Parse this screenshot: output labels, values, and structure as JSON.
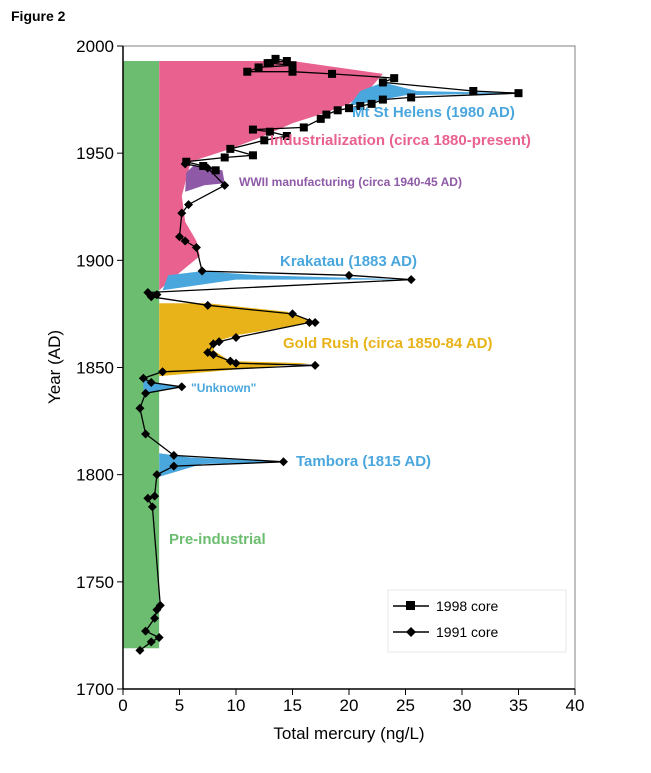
{
  "figure_label": "Figure 2",
  "colors": {
    "pre_industrial": "#6cbd6f",
    "industrialization": "#e9628f",
    "gold_rush": "#e8b318",
    "wwii": "#8e59a6",
    "volcanic": "#4aa7dd",
    "line": "#000000"
  },
  "chart_data": {
    "type": "line",
    "xlabel": "Total mercury (ng/L)",
    "ylabel": "Year (AD)",
    "xlim": [
      0,
      40
    ],
    "ylim": [
      1700,
      2000
    ],
    "xticks": [
      0,
      5,
      10,
      15,
      20,
      25,
      30,
      35,
      40
    ],
    "yticks": [
      1700,
      1750,
      1800,
      1850,
      1900,
      1950,
      2000
    ],
    "legend_position": "bottom-right",
    "series": [
      {
        "name": "1998 core",
        "marker": "square",
        "points": [
          [
            8.2,
            1942
          ],
          [
            7.1,
            1944
          ],
          [
            5.6,
            1946
          ],
          [
            9.0,
            1948
          ],
          [
            11.5,
            1949
          ],
          [
            9.5,
            1952
          ],
          [
            12.5,
            1956
          ],
          [
            14.5,
            1958
          ],
          [
            13.0,
            1960
          ],
          [
            11.5,
            1961
          ],
          [
            16.0,
            1962
          ],
          [
            17.5,
            1966
          ],
          [
            18.0,
            1968
          ],
          [
            19.0,
            1970
          ],
          [
            20.0,
            1971
          ],
          [
            21.0,
            1972
          ],
          [
            22.0,
            1973
          ],
          [
            23.0,
            1975
          ],
          [
            25.5,
            1976
          ],
          [
            31.0,
            1979
          ],
          [
            35.0,
            1978
          ],
          [
            23.0,
            1983
          ],
          [
            24.0,
            1985
          ],
          [
            18.5,
            1987
          ],
          [
            15.0,
            1988
          ],
          [
            11.0,
            1988
          ],
          [
            12.0,
            1990
          ],
          [
            13.0,
            1992
          ],
          [
            15.0,
            1991
          ],
          [
            14.5,
            1993
          ],
          [
            13.5,
            1994
          ],
          [
            12.8,
            1992
          ]
        ]
      },
      {
        "name": "1991 core",
        "marker": "diamond",
        "points": [
          [
            1.5,
            1718
          ],
          [
            2.5,
            1722
          ],
          [
            3.2,
            1724
          ],
          [
            2.0,
            1727
          ],
          [
            2.8,
            1733
          ],
          [
            3.0,
            1737
          ],
          [
            3.3,
            1739
          ],
          [
            2.6,
            1785
          ],
          [
            2.2,
            1789
          ],
          [
            2.8,
            1790
          ],
          [
            3.0,
            1800
          ],
          [
            4.5,
            1804
          ],
          [
            14.2,
            1806
          ],
          [
            4.5,
            1809
          ],
          [
            2.0,
            1819
          ],
          [
            1.5,
            1831
          ],
          [
            2.0,
            1838
          ],
          [
            5.2,
            1841
          ],
          [
            2.5,
            1843
          ],
          [
            1.8,
            1845
          ],
          [
            3.5,
            1848
          ],
          [
            17.0,
            1851
          ],
          [
            10.0,
            1852
          ],
          [
            9.5,
            1853
          ],
          [
            8.0,
            1856
          ],
          [
            7.5,
            1857
          ],
          [
            8.0,
            1861
          ],
          [
            8.5,
            1862
          ],
          [
            10.0,
            1864
          ],
          [
            16.5,
            1871
          ],
          [
            17.0,
            1871
          ],
          [
            15.0,
            1875
          ],
          [
            7.5,
            1879
          ],
          [
            2.5,
            1883
          ],
          [
            3.0,
            1884
          ],
          [
            2.2,
            1885
          ],
          [
            25.5,
            1891
          ],
          [
            20.0,
            1893
          ],
          [
            7.0,
            1895
          ],
          [
            6.5,
            1906
          ],
          [
            5.5,
            1909
          ],
          [
            5.0,
            1911
          ],
          [
            5.2,
            1922
          ],
          [
            5.8,
            1926
          ],
          [
            9.0,
            1935
          ],
          [
            7.5,
            1943
          ],
          [
            5.5,
            1945
          ]
        ]
      }
    ],
    "annotations": [
      {
        "text": "Mt St Helens (1980 AD)",
        "color": "volcanic"
      },
      {
        "text": "Industrialization (circa 1880-present)",
        "color": "industrialization"
      },
      {
        "text": "WWII manufacturing (circa 1940-45 AD)",
        "color": "wwii"
      },
      {
        "text": "Krakatau (1883 AD)",
        "color": "volcanic"
      },
      {
        "text": "Gold Rush (circa 1850-84 AD)",
        "color": "gold_rush"
      },
      {
        "text": "\"Unknown\"",
        "color": "volcanic"
      },
      {
        "text": "Tambora (1815 AD)",
        "color": "volcanic"
      },
      {
        "text": "Pre-industrial",
        "color": "pre_industrial"
      }
    ],
    "shaded_regions": [
      {
        "name": "Pre-industrial",
        "color": "pre_industrial",
        "x": [
          0,
          3.2
        ],
        "y": [
          1719,
          1993
        ]
      },
      {
        "name": "Industrialization",
        "color": "industrialization",
        "x_from": 3.2,
        "y": [
          1886,
          1993
        ]
      },
      {
        "name": "Gold Rush",
        "color": "gold_rush",
        "x_from": 3.2,
        "y": [
          1846,
          1880
        ]
      },
      {
        "name": "WWII manufacturing",
        "color": "wwii",
        "x_from": 5.5,
        "y": [
          1932,
          1944
        ]
      },
      {
        "name": "Krakatau",
        "color": "volcanic",
        "y": [
          1886,
          1896
        ]
      },
      {
        "name": "Tambora",
        "color": "volcanic",
        "y": [
          1799,
          1810
        ]
      },
      {
        "name": "Mt St Helens",
        "color": "volcanic",
        "y": [
          1972,
          1983
        ]
      },
      {
        "name": "Unknown",
        "color": "volcanic",
        "y": [
          1836,
          1846
        ]
      }
    ]
  }
}
